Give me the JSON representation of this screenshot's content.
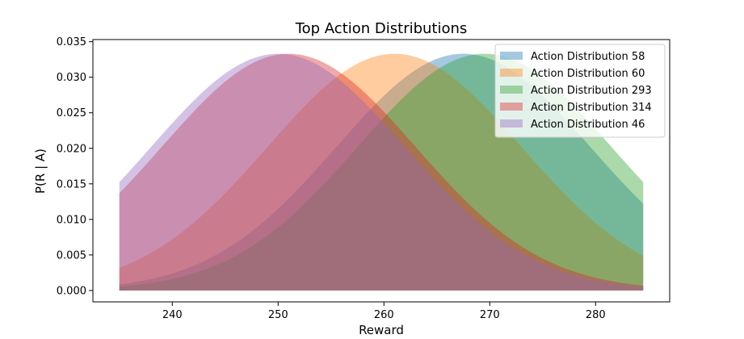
{
  "chart_data": {
    "type": "area",
    "title": "Top Action Distributions",
    "xlabel": "Reward",
    "ylabel": "P(R | A)",
    "xlim": [
      232.5,
      287.0
    ],
    "ylim": [
      -0.0016,
      0.0353
    ],
    "x_range": [
      235.0,
      284.5
    ],
    "x_ticks": [
      240,
      250,
      260,
      270,
      280
    ],
    "y_ticks": [
      0.0,
      0.005,
      0.01,
      0.015,
      0.02,
      0.025,
      0.03,
      0.035
    ],
    "x_tick_labels": [
      "240",
      "250",
      "260",
      "270",
      "280"
    ],
    "y_tick_labels": [
      "0.000",
      "0.005",
      "0.010",
      "0.015",
      "0.020",
      "0.025",
      "0.030",
      "0.035"
    ],
    "grid": false,
    "legend_position": "top-right",
    "series": [
      {
        "name": "Action Distribution 58",
        "distribution": "normal",
        "mean": 267.5,
        "std": 12,
        "peak": 0.0333,
        "color": "#1f77b4",
        "opacity": 0.4
      },
      {
        "name": "Action Distribution 60",
        "distribution": "normal",
        "mean": 261.0,
        "std": 12,
        "peak": 0.0333,
        "color": "#ff7f0e",
        "opacity": 0.4
      },
      {
        "name": "Action Distribution 293",
        "distribution": "normal",
        "mean": 269.5,
        "std": 12,
        "peak": 0.0333,
        "color": "#2ca02c",
        "opacity": 0.4
      },
      {
        "name": "Action Distribution 314",
        "distribution": "normal",
        "mean": 251.0,
        "std": 12,
        "peak": 0.0333,
        "color": "#d62728",
        "opacity": 0.4
      },
      {
        "name": "Action Distribution 46",
        "distribution": "normal",
        "mean": 250.0,
        "std": 12,
        "peak": 0.0333,
        "color": "#9467bd",
        "opacity": 0.4
      }
    ]
  }
}
